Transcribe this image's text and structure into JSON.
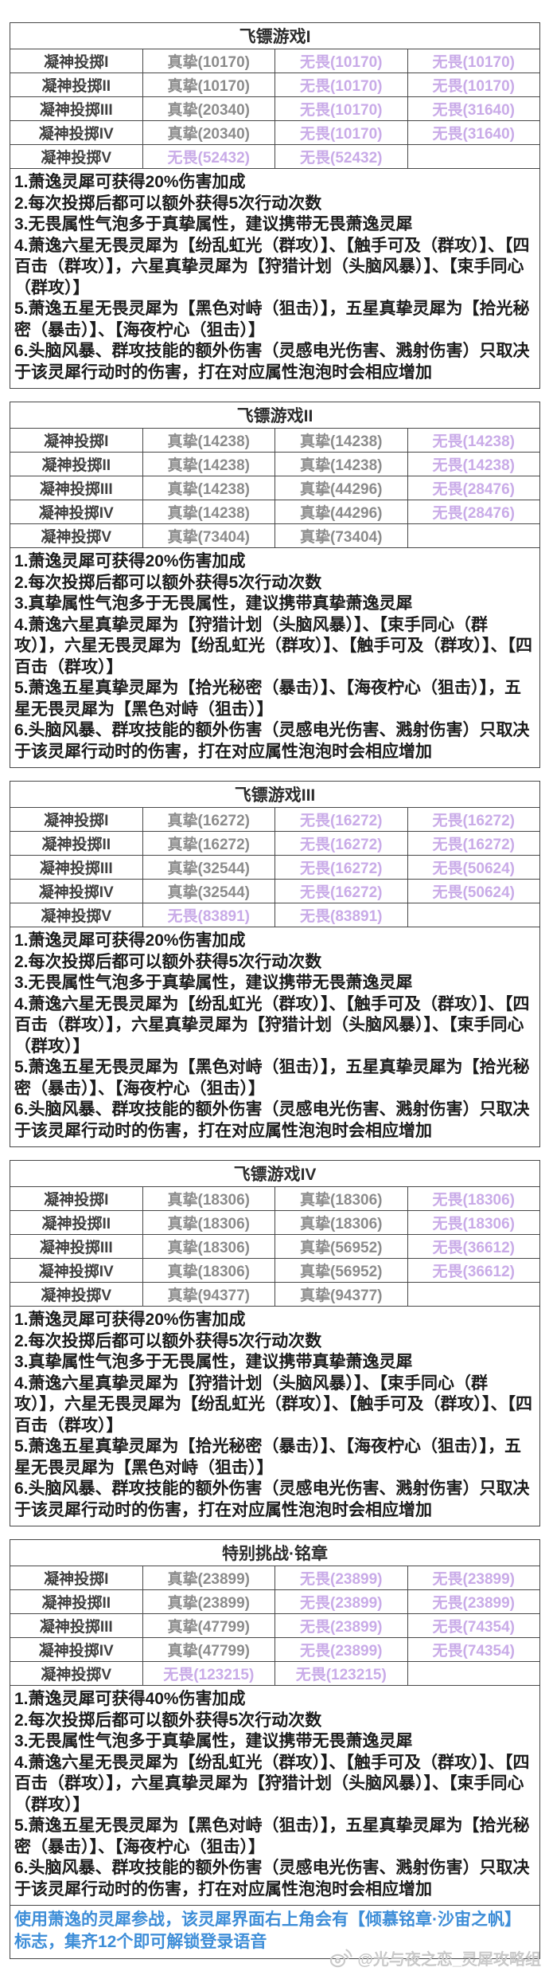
{
  "colors": {
    "zhenzhi_gray": "#8c8c8c",
    "wuwei_purple": "#c9abe8",
    "note_black": "#1c1c1c",
    "special_blue": "#3e8ed8",
    "border": "#474747",
    "watermark_gray": "#c9c9c9"
  },
  "watermark": {
    "icon": "weibo-icon",
    "text": "@光与夜之恋_灵犀攻略组"
  },
  "sections": [
    {
      "title": "飞镖游戏I",
      "rows": [
        {
          "label": "凝神投掷I",
          "cells": [
            "真挚(10170)",
            "无畏(10170)",
            "无畏(10170)"
          ]
        },
        {
          "label": "凝神投掷II",
          "cells": [
            "真挚(10170)",
            "无畏(10170)",
            "无畏(10170)"
          ]
        },
        {
          "label": "凝神投掷III",
          "cells": [
            "真挚(20340)",
            "无畏(10170)",
            "无畏(31640)"
          ]
        },
        {
          "label": "凝神投掷IV",
          "cells": [
            "真挚(20340)",
            "无畏(10170)",
            "无畏(31640)"
          ]
        },
        {
          "label": "凝神投掷V",
          "cells": [
            "无畏(52432)",
            "无畏(52432)",
            ""
          ]
        }
      ],
      "notes": [
        "1.萧逸灵犀可获得20%伤害加成",
        "2.每次投掷后都可以额外获得5次行动次数",
        "3.无畏属性气泡多于真挚属性，建议携带无畏萧逸灵犀",
        "4.萧逸六星无畏灵犀为【纷乱虹光（群攻）】、【触手可及（群攻）】、【四百击（群攻）】，六星真挚灵犀为【狩猎计划（头脑风暴）】、【束手同心（群攻）】",
        "5.萧逸五星无畏灵犀为【黑色对峙（狙击）】，五星真挚灵犀为【拾光秘密（暴击）】、【海夜柠心（狙击）】",
        "6.头脑风暴、群攻技能的额外伤害（灵感电光伤害、溅射伤害）只取决于该灵犀行动时的伤害，打在对应属性泡泡时会相应增加"
      ],
      "special_note": ""
    },
    {
      "title": "飞镖游戏II",
      "rows": [
        {
          "label": "凝神投掷I",
          "cells": [
            "真挚(14238)",
            "真挚(14238)",
            "无畏(14238)"
          ]
        },
        {
          "label": "凝神投掷II",
          "cells": [
            "真挚(14238)",
            "真挚(14238)",
            "无畏(14238)"
          ]
        },
        {
          "label": "凝神投掷III",
          "cells": [
            "真挚(14238)",
            "真挚(44296)",
            "无畏(28476)"
          ]
        },
        {
          "label": "凝神投掷IV",
          "cells": [
            "真挚(14238)",
            "真挚(44296)",
            "无畏(28476)"
          ]
        },
        {
          "label": "凝神投掷V",
          "cells": [
            "真挚(73404)",
            "真挚(73404)",
            ""
          ]
        }
      ],
      "notes": [
        "1.萧逸灵犀可获得20%伤害加成",
        "2.每次投掷后都可以额外获得5次行动次数",
        "3.真挚属性气泡多于无畏属性，建议携带真挚萧逸灵犀",
        "4.萧逸六星真挚灵犀为【狩猎计划（头脑风暴）】、【束手同心（群攻）】，六星无畏灵犀为【纷乱虹光（群攻）】、【触手可及（群攻）】、【四百击（群攻）】",
        "5.萧逸五星真挚灵犀为【拾光秘密（暴击）】、【海夜柠心（狙击）】，五星无畏灵犀为【黑色对峙（狙击）】",
        "6.头脑风暴、群攻技能的额外伤害（灵感电光伤害、溅射伤害）只取决于该灵犀行动时的伤害，打在对应属性泡泡时会相应增加"
      ],
      "special_note": ""
    },
    {
      "title": "飞镖游戏III",
      "rows": [
        {
          "label": "凝神投掷I",
          "cells": [
            "真挚(16272)",
            "无畏(16272)",
            "无畏(16272)"
          ]
        },
        {
          "label": "凝神投掷II",
          "cells": [
            "真挚(16272)",
            "无畏(16272)",
            "无畏(16272)"
          ]
        },
        {
          "label": "凝神投掷III",
          "cells": [
            "真挚(32544)",
            "无畏(16272)",
            "无畏(50624)"
          ]
        },
        {
          "label": "凝神投掷IV",
          "cells": [
            "真挚(32544)",
            "无畏(16272)",
            "无畏(50624)"
          ]
        },
        {
          "label": "凝神投掷V",
          "cells": [
            "无畏(83891)",
            "无畏(83891)",
            ""
          ]
        }
      ],
      "notes": [
        "1.萧逸灵犀可获得20%伤害加成",
        "2.每次投掷后都可以额外获得5次行动次数",
        "3.无畏属性气泡多于真挚属性，建议携带无畏萧逸灵犀",
        "4.萧逸六星无畏灵犀为【纷乱虹光（群攻）】、【触手可及（群攻）】、【四百击（群攻）】，六星真挚灵犀为【狩猎计划（头脑风暴）】、【束手同心（群攻）】",
        "5.萧逸五星无畏灵犀为【黑色对峙（狙击）】，五星真挚灵犀为【拾光秘密（暴击）】、【海夜柠心（狙击）】",
        "6.头脑风暴、群攻技能的额外伤害（灵感电光伤害、溅射伤害）只取决于该灵犀行动时的伤害，打在对应属性泡泡时会相应增加"
      ],
      "special_note": ""
    },
    {
      "title": "飞镖游戏IV",
      "rows": [
        {
          "label": "凝神投掷I",
          "cells": [
            "真挚(18306)",
            "真挚(18306)",
            "无畏(18306)"
          ]
        },
        {
          "label": "凝神投掷II",
          "cells": [
            "真挚(18306)",
            "真挚(18306)",
            "无畏(18306)"
          ]
        },
        {
          "label": "凝神投掷III",
          "cells": [
            "真挚(18306)",
            "真挚(56952)",
            "无畏(36612)"
          ]
        },
        {
          "label": "凝神投掷IV",
          "cells": [
            "真挚(18306)",
            "真挚(56952)",
            "无畏(36612)"
          ]
        },
        {
          "label": "凝神投掷V",
          "cells": [
            "真挚(94377)",
            "真挚(94377)",
            ""
          ]
        }
      ],
      "notes": [
        "1.萧逸灵犀可获得20%伤害加成",
        "2.每次投掷后都可以额外获得5次行动次数",
        "3.真挚属性气泡多于无畏属性，建议携带真挚萧逸灵犀",
        "4.萧逸六星真挚灵犀为【狩猎计划（头脑风暴）】、【束手同心（群攻）】，六星无畏灵犀为【纷乱虹光（群攻）】、【触手可及（群攻）】、【四百击（群攻）】",
        "5.萧逸五星真挚灵犀为【拾光秘密（暴击）】、【海夜柠心（狙击）】，五星无畏灵犀为【黑色对峙（狙击）】",
        "6.头脑风暴、群攻技能的额外伤害（灵感电光伤害、溅射伤害）只取决于该灵犀行动时的伤害，打在对应属性泡泡时会相应增加"
      ],
      "special_note": ""
    },
    {
      "title": "特别挑战·铭章",
      "rows": [
        {
          "label": "凝神投掷I",
          "cells": [
            "真挚(23899)",
            "无畏(23899)",
            "无畏(23899)"
          ]
        },
        {
          "label": "凝神投掷II",
          "cells": [
            "真挚(23899)",
            "无畏(23899)",
            "无畏(23899)"
          ]
        },
        {
          "label": "凝神投掷III",
          "cells": [
            "真挚(47799)",
            "无畏(23899)",
            "无畏(74354)"
          ]
        },
        {
          "label": "凝神投掷IV",
          "cells": [
            "真挚(47799)",
            "无畏(23899)",
            "无畏(74354)"
          ]
        },
        {
          "label": "凝神投掷V",
          "cells": [
            "无畏(123215)",
            "无畏(123215)",
            ""
          ]
        }
      ],
      "notes": [
        "1.萧逸灵犀可获得40%伤害加成",
        "2.每次投掷后都可以额外获得5次行动次数",
        "3.无畏属性气泡多于真挚属性，建议携带无畏萧逸灵犀",
        "4.萧逸六星无畏灵犀为【纷乱虹光（群攻）】、【触手可及（群攻）】、【四百击（群攻）】，六星真挚灵犀为【狩猎计划（头脑风暴）】、【束手同心（群攻）】",
        "5.萧逸五星无畏灵犀为【黑色对峙（狙击）】，五星真挚灵犀为【拾光秘密（暴击）】、【海夜柠心（狙击）】",
        "6.头脑风暴、群攻技能的额外伤害（灵感电光伤害、溅射伤害）只取决于该灵犀行动时的伤害，打在对应属性泡泡时会相应增加"
      ],
      "special_note": "使用萧逸的灵犀参战，该灵犀界面右上角会有【倾慕铭章·沙宙之帆】标志，集齐12个即可解锁登录语音"
    }
  ]
}
